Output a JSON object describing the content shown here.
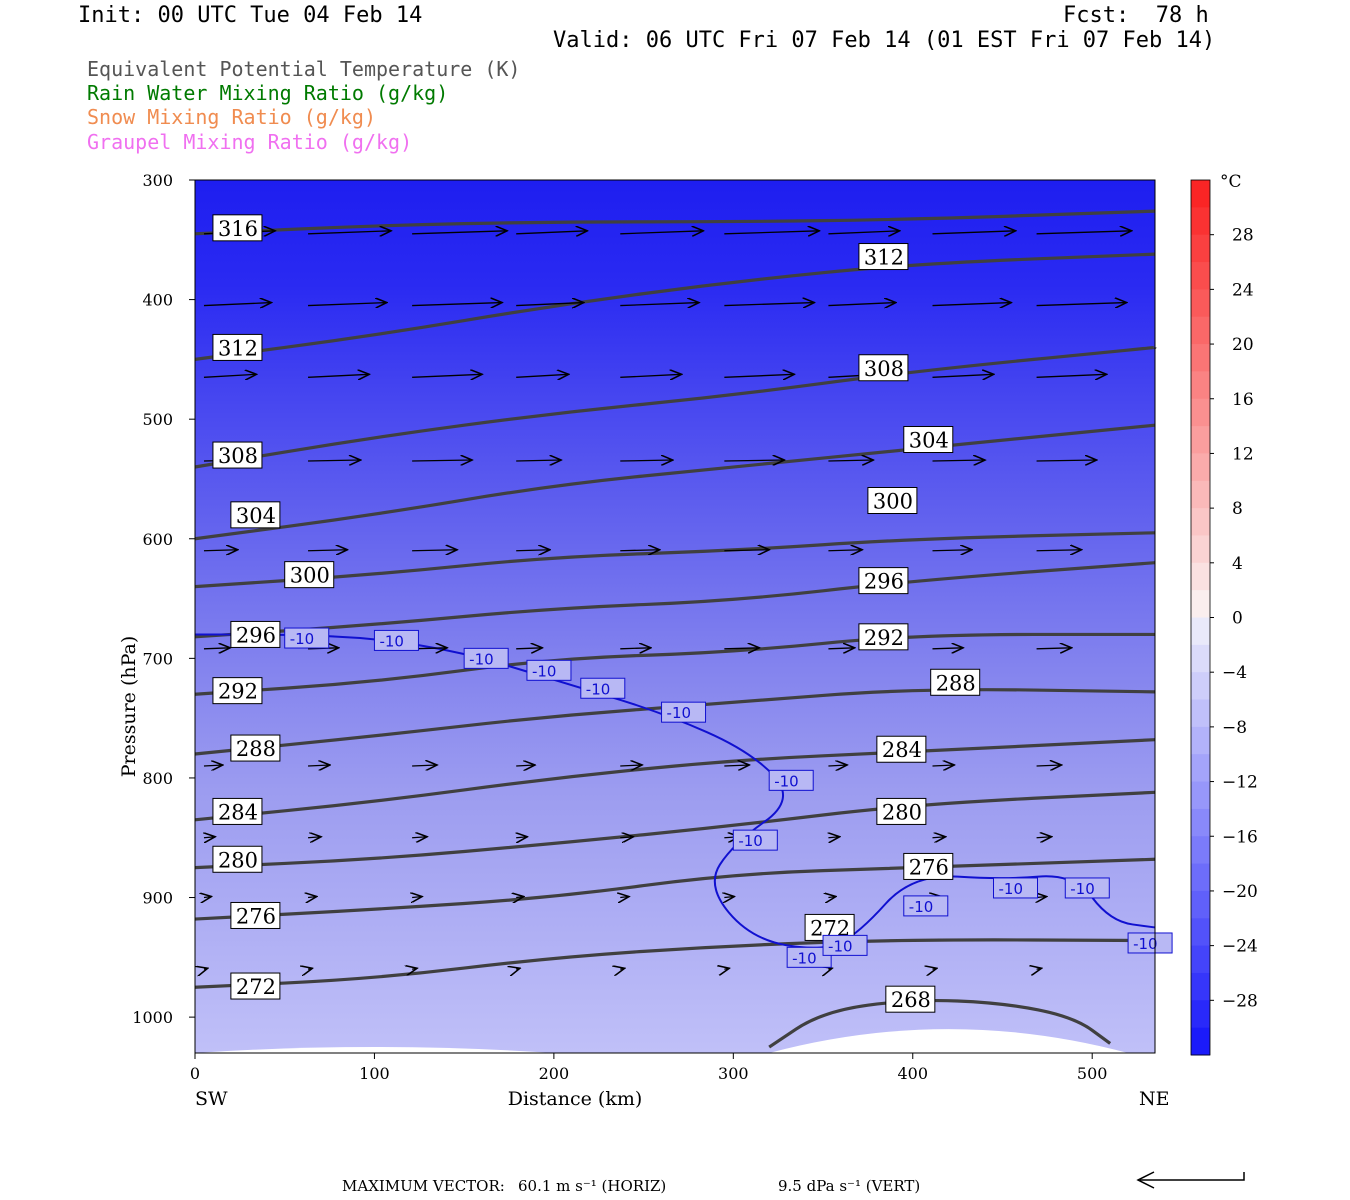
{
  "header": {
    "init": "Init: 00 UTC Tue 04 Feb 14",
    "fcst": "Fcst:  78 h",
    "valid": "Valid: 06 UTC Fri 07 Feb 14 (01 EST Fri 07 Feb 14)"
  },
  "legend": [
    {
      "label": "Equivalent Potential Temperature (K)",
      "color": "#555555"
    },
    {
      "label": "Rain Water Mixing Ratio (g/kg)",
      "color": "#007a00"
    },
    {
      "label": "Snow Mixing Ratio (g/kg)",
      "color": "#f08c50"
    },
    {
      "label": "Graupel Mixing Ratio (g/kg)",
      "color": "#f070f0"
    }
  ],
  "footer": {
    "max_vector_label": "MAXIMUM VECTOR:",
    "horiz": "60.1 m s⁻¹ (HORIZ)",
    "vert": "9.5 dPa s⁻¹ (VERT)"
  },
  "chart_data": {
    "type": "contour",
    "xlabel": "Distance (km)",
    "ylabel": "Pressure (hPa)",
    "xlim": [
      0,
      535
    ],
    "ylim": [
      1030,
      300
    ],
    "x_ticks": [
      0,
      100,
      200,
      300,
      400,
      500
    ],
    "y_ticks": [
      300,
      400,
      500,
      600,
      700,
      800,
      900,
      1000
    ],
    "x_end_labels": {
      "left": "SW",
      "right": "NE"
    },
    "colorbar": {
      "unit": "°C",
      "ticks": [
        28,
        24,
        20,
        16,
        12,
        8,
        4,
        0,
        -4,
        -8,
        -12,
        -16,
        -20,
        -24,
        -28
      ],
      "range": [
        -32,
        32
      ]
    },
    "theta_e_contours": [
      {
        "value": 316,
        "points": [
          [
            0,
            345
          ],
          [
            100,
            338
          ],
          [
            200,
            335
          ],
          [
            300,
            335
          ],
          [
            400,
            333
          ],
          [
            535,
            326
          ]
        ],
        "label": [
          10,
          340
        ]
      },
      {
        "value": 312,
        "points": [
          [
            0,
            450
          ],
          [
            100,
            430
          ],
          [
            200,
            405
          ],
          [
            300,
            385
          ],
          [
            400,
            370
          ],
          [
            535,
            362
          ]
        ],
        "label": [
          370,
          364
        ],
        "label2": [
          10,
          440
        ]
      },
      {
        "value": 308,
        "points": [
          [
            0,
            540
          ],
          [
            100,
            515
          ],
          [
            200,
            495
          ],
          [
            300,
            480
          ],
          [
            400,
            460
          ],
          [
            535,
            440
          ]
        ],
        "label": [
          370,
          457
        ],
        "label2": [
          10,
          530
        ]
      },
      {
        "value": 304,
        "points": [
          [
            0,
            600
          ],
          [
            100,
            580
          ],
          [
            200,
            555
          ],
          [
            300,
            540
          ],
          [
            400,
            525
          ],
          [
            535,
            505
          ]
        ],
        "label": [
          395,
          517
        ],
        "label2": [
          20,
          580
        ]
      },
      {
        "value": 300,
        "points": [
          [
            0,
            640
          ],
          [
            100,
            630
          ],
          [
            200,
            615
          ],
          [
            300,
            610
          ],
          [
            400,
            600
          ],
          [
            535,
            595
          ]
        ],
        "label": [
          375,
          568
        ],
        "label2": [
          50,
          630
        ]
      },
      {
        "value": 296,
        "points": [
          [
            0,
            682
          ],
          [
            100,
            672
          ],
          [
            200,
            658
          ],
          [
            300,
            652
          ],
          [
            400,
            635
          ],
          [
            535,
            620
          ]
        ],
        "label": [
          370,
          635
        ],
        "label2": [
          20,
          680
        ]
      },
      {
        "value": 292,
        "points": [
          [
            0,
            730
          ],
          [
            100,
            720
          ],
          [
            200,
            700
          ],
          [
            300,
            695
          ],
          [
            400,
            680
          ],
          [
            535,
            680
          ]
        ],
        "label": [
          370,
          682
        ],
        "label2": [
          10,
          727
        ]
      },
      {
        "value": 288,
        "points": [
          [
            0,
            780
          ],
          [
            100,
            765
          ],
          [
            200,
            748
          ],
          [
            300,
            737
          ],
          [
            400,
            725
          ],
          [
            535,
            728
          ]
        ],
        "label": [
          410,
          720
        ],
        "label2": [
          20,
          775
        ]
      },
      {
        "value": 284,
        "points": [
          [
            0,
            835
          ],
          [
            100,
            820
          ],
          [
            200,
            800
          ],
          [
            300,
            785
          ],
          [
            400,
            778
          ],
          [
            535,
            768
          ]
        ],
        "label": [
          380,
          776
        ],
        "label2": [
          10,
          828
        ]
      },
      {
        "value": 280,
        "points": [
          [
            0,
            875
          ],
          [
            100,
            868
          ],
          [
            200,
            855
          ],
          [
            300,
            840
          ],
          [
            400,
            822
          ],
          [
            535,
            812
          ]
        ],
        "label": [
          380,
          828
        ],
        "label2": [
          10,
          868
        ]
      },
      {
        "value": 276,
        "points": [
          [
            0,
            918
          ],
          [
            100,
            910
          ],
          [
            200,
            900
          ],
          [
            300,
            880
          ],
          [
            400,
            875
          ],
          [
            535,
            868
          ]
        ],
        "label": [
          395,
          874
        ],
        "label2": [
          20,
          915
        ]
      },
      {
        "value": 272,
        "points": [
          [
            0,
            975
          ],
          [
            100,
            968
          ],
          [
            200,
            950
          ],
          [
            300,
            940
          ],
          [
            400,
            935
          ],
          [
            535,
            936
          ]
        ],
        "label": [
          340,
          925
        ],
        "label2": [
          20,
          974
        ]
      },
      {
        "value": 268,
        "points": [
          [
            320,
            1025
          ],
          [
            350,
            995
          ],
          [
            400,
            985
          ],
          [
            450,
            988
          ],
          [
            490,
            1000
          ],
          [
            510,
            1022
          ]
        ],
        "label": [
          385,
          985
        ]
      }
    ],
    "isotherm_minus10": {
      "value": -10,
      "points": [
        [
          0,
          680
        ],
        [
          50,
          680
        ],
        [
          100,
          683
        ],
        [
          150,
          695
        ],
        [
          200,
          718
        ],
        [
          260,
          745
        ],
        [
          310,
          778
        ],
        [
          335,
          818
        ],
        [
          300,
          855
        ],
        [
          285,
          890
        ],
        [
          310,
          935
        ],
        [
          350,
          945
        ],
        [
          370,
          930
        ],
        [
          400,
          880
        ],
        [
          450,
          885
        ],
        [
          490,
          880
        ],
        [
          510,
          920
        ],
        [
          535,
          925
        ]
      ]
    },
    "isotherm_labels": [
      [
        50,
        683
      ],
      [
        100,
        685
      ],
      [
        150,
        700
      ],
      [
        185,
        710
      ],
      [
        215,
        725
      ],
      [
        260,
        745
      ],
      [
        320,
        802
      ],
      [
        300,
        852
      ],
      [
        330,
        950
      ],
      [
        350,
        940
      ],
      [
        395,
        907
      ],
      [
        445,
        892
      ],
      [
        485,
        892
      ],
      [
        520,
        938
      ]
    ],
    "temperature_shading": "blue gradient: ≈ -30 °C near 300 hPa warming to ≈ -8 °C near 1000 hPa"
  }
}
